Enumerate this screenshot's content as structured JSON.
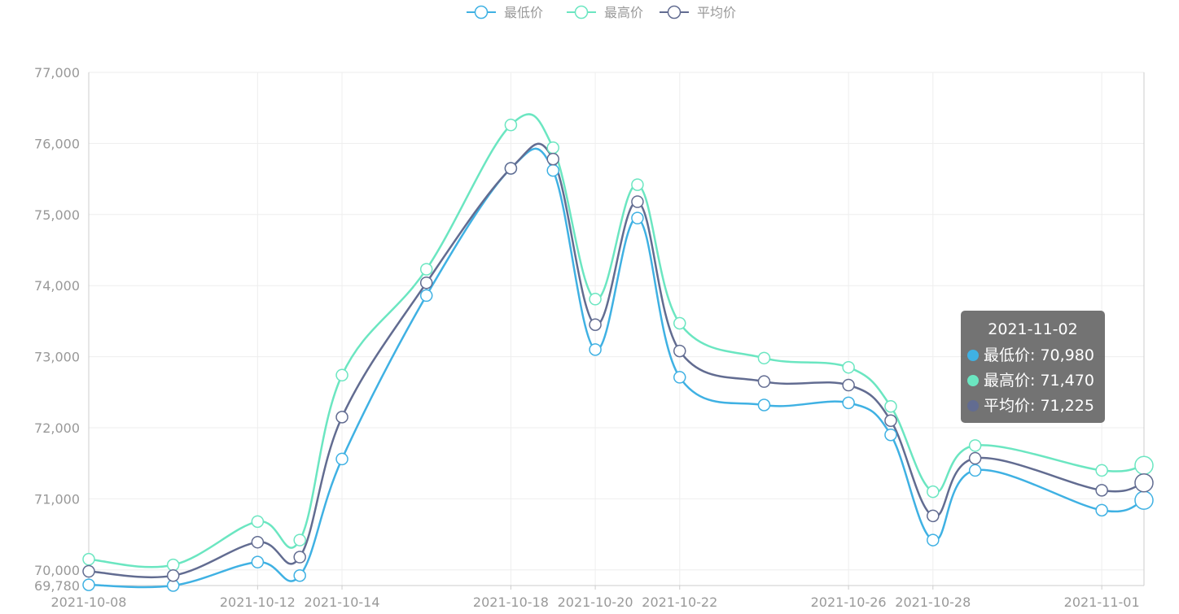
{
  "chart_data": {
    "type": "line",
    "smooth": true,
    "x": [
      "2021-10-08",
      "2021-10-10",
      "2021-10-12",
      "2021-10-13",
      "2021-10-14",
      "2021-10-16",
      "2021-10-18",
      "2021-10-19",
      "2021-10-20",
      "2021-10-21",
      "2021-10-22",
      "2021-10-24",
      "2021-10-26",
      "2021-10-27",
      "2021-10-28",
      "2021-10-29",
      "2021-11-01",
      "2021-11-02"
    ],
    "xticks": [
      "2021-10-08",
      "2021-10-12",
      "2021-10-14",
      "2021-10-18",
      "2021-10-20",
      "2021-10-22",
      "2021-10-26",
      "2021-10-28",
      "2021-11-01"
    ],
    "ylim": [
      69780,
      77000
    ],
    "yticks": [
      69780,
      70000,
      71000,
      72000,
      73000,
      74000,
      75000,
      76000,
      77000
    ],
    "grid": true,
    "legend_position": "top-center",
    "series": [
      {
        "name": "最低价",
        "color": "#3fb1e3",
        "values": [
          69790,
          69780,
          70110,
          69920,
          71560,
          73860,
          75650,
          75620,
          73100,
          74950,
          72710,
          72320,
          72350,
          71900,
          70420,
          71400,
          70840,
          70980
        ]
      },
      {
        "name": "最高价",
        "color": "#6be6c1",
        "values": [
          70150,
          70070,
          70680,
          70420,
          72740,
          74230,
          76260,
          75940,
          73810,
          75420,
          73470,
          72980,
          72850,
          72300,
          71100,
          71750,
          71400,
          71470
        ]
      },
      {
        "name": "平均价",
        "color": "#626c91",
        "values": [
          69980,
          69920,
          70390,
          70180,
          72150,
          74040,
          75650,
          75780,
          73450,
          75180,
          73080,
          72650,
          72600,
          72100,
          70760,
          71570,
          71120,
          71225
        ]
      }
    ],
    "tooltip": {
      "title": "2021-11-02",
      "rows": [
        {
          "label": "最低价",
          "value": "70,980",
          "color": "#3fb1e3"
        },
        {
          "label": "最高价",
          "value": "71,470",
          "color": "#6be6c1"
        },
        {
          "label": "平均价",
          "value": "71,225",
          "color": "#626c91"
        }
      ]
    }
  }
}
